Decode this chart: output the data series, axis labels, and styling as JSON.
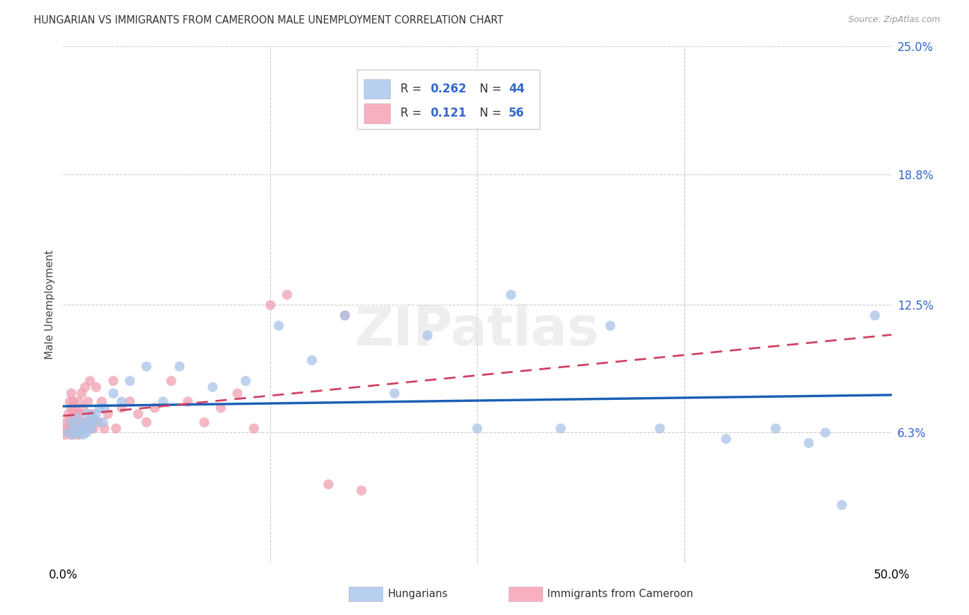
{
  "title": "HUNGARIAN VS IMMIGRANTS FROM CAMEROON MALE UNEMPLOYMENT CORRELATION CHART",
  "source": "Source: ZipAtlas.com",
  "ylabel": "Male Unemployment",
  "xlim": [
    0,
    0.5
  ],
  "ylim": [
    0,
    0.25
  ],
  "ytick_vals": [
    0.063,
    0.125,
    0.188,
    0.25
  ],
  "ytick_labels": [
    "6.3%",
    "12.5%",
    "18.8%",
    "25.0%"
  ],
  "xtick_vals": [
    0.0,
    0.125,
    0.25,
    0.375,
    0.5
  ],
  "xtick_labels": [
    "0.0%",
    "",
    "",
    "",
    "50.0%"
  ],
  "blue_color": "#a8c4e8",
  "pink_color": "#f0a0b0",
  "blue_line_color": "#1a5fb4",
  "pink_line_color": "#d04060",
  "watermark": "ZIPatlas",
  "background_color": "#ffffff",
  "grid_color": "#cccccc",
  "blue_legend_color": "#b8d0f0",
  "pink_legend_color": "#f8b0c0",
  "legend_R_blue": "0.262",
  "legend_N_blue": "44",
  "legend_R_pink": "0.121",
  "legend_N_pink": "56",
  "blue_x": [
    0.003,
    0.005,
    0.006,
    0.007,
    0.008,
    0.009,
    0.01,
    0.011,
    0.012,
    0.013,
    0.014,
    0.015,
    0.016,
    0.017,
    0.018,
    0.019,
    0.02,
    0.022,
    0.024,
    0.025,
    0.03,
    0.035,
    0.04,
    0.05,
    0.06,
    0.07,
    0.09,
    0.11,
    0.13,
    0.15,
    0.17,
    0.2,
    0.22,
    0.25,
    0.27,
    0.3,
    0.33,
    0.36,
    0.4,
    0.43,
    0.45,
    0.46,
    0.47,
    0.49
  ],
  "blue_y": [
    0.063,
    0.068,
    0.062,
    0.065,
    0.07,
    0.063,
    0.065,
    0.068,
    0.062,
    0.066,
    0.063,
    0.072,
    0.068,
    0.065,
    0.07,
    0.068,
    0.072,
    0.075,
    0.068,
    0.075,
    0.082,
    0.078,
    0.088,
    0.095,
    0.078,
    0.095,
    0.085,
    0.088,
    0.115,
    0.098,
    0.12,
    0.082,
    0.11,
    0.065,
    0.13,
    0.065,
    0.115,
    0.065,
    0.06,
    0.065,
    0.058,
    0.063,
    0.028,
    0.12
  ],
  "pink_x": [
    0.001,
    0.002,
    0.002,
    0.003,
    0.003,
    0.004,
    0.004,
    0.004,
    0.005,
    0.005,
    0.005,
    0.006,
    0.006,
    0.006,
    0.007,
    0.007,
    0.007,
    0.008,
    0.008,
    0.009,
    0.009,
    0.01,
    0.01,
    0.011,
    0.011,
    0.012,
    0.013,
    0.013,
    0.014,
    0.015,
    0.016,
    0.017,
    0.018,
    0.02,
    0.021,
    0.023,
    0.025,
    0.027,
    0.03,
    0.032,
    0.035,
    0.04,
    0.045,
    0.05,
    0.055,
    0.065,
    0.075,
    0.085,
    0.095,
    0.105,
    0.115,
    0.125,
    0.135,
    0.16,
    0.17,
    0.18
  ],
  "pink_y": [
    0.062,
    0.065,
    0.068,
    0.063,
    0.072,
    0.065,
    0.078,
    0.068,
    0.062,
    0.075,
    0.082,
    0.065,
    0.072,
    0.078,
    0.063,
    0.068,
    0.075,
    0.065,
    0.072,
    0.062,
    0.078,
    0.065,
    0.072,
    0.068,
    0.082,
    0.075,
    0.065,
    0.085,
    0.068,
    0.078,
    0.088,
    0.072,
    0.065,
    0.085,
    0.068,
    0.078,
    0.065,
    0.072,
    0.088,
    0.065,
    0.075,
    0.078,
    0.072,
    0.068,
    0.075,
    0.088,
    0.078,
    0.068,
    0.075,
    0.082,
    0.065,
    0.125,
    0.13,
    0.038,
    0.12,
    0.035
  ]
}
